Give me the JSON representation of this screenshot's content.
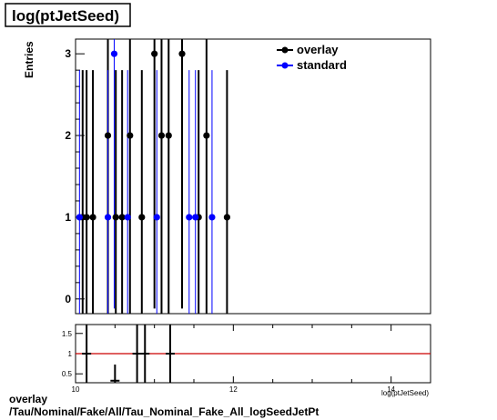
{
  "chart_data": [
    {
      "type": "scatter",
      "title": "log(ptJetSeed)",
      "ylabel": "Entries",
      "xlim": [
        10,
        14.5
      ],
      "ylim": [
        -0.18,
        3.18
      ],
      "yticks": [
        0,
        1,
        2,
        3
      ],
      "grid": false,
      "legend_position": "top-right",
      "legend": [
        {
          "label": "overlay",
          "color": "#000000"
        },
        {
          "label": "standard",
          "color": "#0000ff"
        }
      ],
      "series": [
        {
          "name": "overlay",
          "color": "#000000",
          "x": [
            10.09,
            10.14,
            10.22,
            10.41,
            10.51,
            10.59,
            10.69,
            10.84,
            11.0,
            11.09,
            11.18,
            11.35,
            11.56,
            11.66,
            11.92
          ],
          "y": [
            1,
            1,
            1,
            2,
            1,
            1,
            2,
            1,
            3,
            2,
            2,
            3,
            1,
            2,
            1
          ]
        },
        {
          "name": "standard",
          "color": "#0000ff",
          "x": [
            10.05,
            10.41,
            10.49,
            10.66,
            11.03,
            11.44,
            11.52,
            11.73
          ],
          "y": [
            1,
            1,
            3,
            1,
            1,
            1,
            1,
            1
          ]
        }
      ]
    },
    {
      "type": "scatter",
      "xlabel": "log(ptJetSeed)",
      "xlim": [
        10,
        14.5
      ],
      "ylim": [
        0.28,
        1.72
      ],
      "yticks": [
        0.5,
        1.0,
        1.5
      ],
      "ytick_labels": [
        "0.5",
        "1",
        "1.5"
      ],
      "xticks": [
        10,
        12,
        14
      ],
      "reference_line": {
        "y": 1.0,
        "color": "#cc0000"
      },
      "series": [
        {
          "name": "",
          "color": "#000000",
          "x": [
            10.14,
            10.5,
            10.78,
            10.88,
            11.2
          ],
          "y": [
            1.0,
            0.33,
            1.0,
            1.0,
            1.0
          ],
          "yerr": [
            1.5,
            0.4,
            1.5,
            1.5,
            1.5
          ]
        }
      ]
    }
  ],
  "footer": {
    "line1": "overlay",
    "line2": "/Tau/Nominal/Fake/All/Tau_Nominal_Fake_All_logSeedJetPt"
  }
}
